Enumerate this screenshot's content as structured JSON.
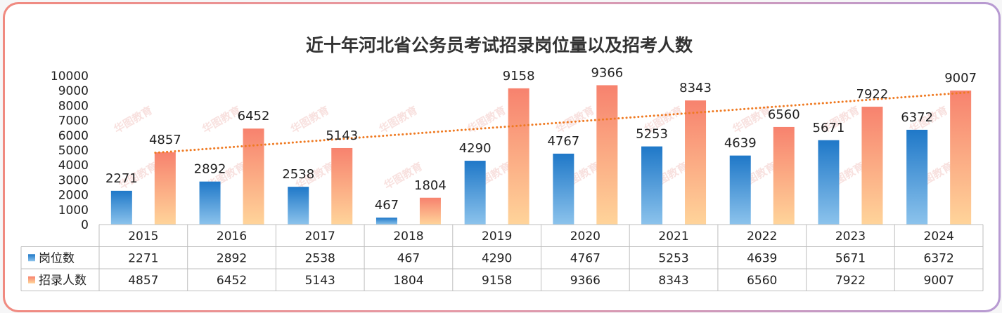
{
  "chart_data": {
    "type": "bar",
    "title": "近十年河北省公务员考试招录岗位量以及招考人数",
    "categories": [
      "2015",
      "2016",
      "2017",
      "2018",
      "2019",
      "2020",
      "2021",
      "2022",
      "2023",
      "2024"
    ],
    "series": [
      {
        "name": "岗位数",
        "values": [
          2271,
          2892,
          2538,
          467,
          4290,
          4767,
          5253,
          4639,
          5671,
          6372
        ],
        "color_top": "#1f78c8",
        "color_bottom": "#8cc3ec"
      },
      {
        "name": "招录人数",
        "values": [
          4857,
          6452,
          5143,
          1804,
          9158,
          9366,
          8343,
          6560,
          7922,
          9007
        ],
        "color_top": "#f7826e",
        "color_bottom": "#ffd49a"
      }
    ],
    "ylim": [
      0,
      10000
    ],
    "yticks": [
      0,
      1000,
      2000,
      3000,
      4000,
      5000,
      6000,
      7000,
      8000,
      9000,
      10000
    ],
    "trendline": {
      "series": "招录人数",
      "kind": "linear",
      "style": "dotted",
      "color": "#ef7a22"
    },
    "data_table": true,
    "watermark": "华图教育"
  }
}
